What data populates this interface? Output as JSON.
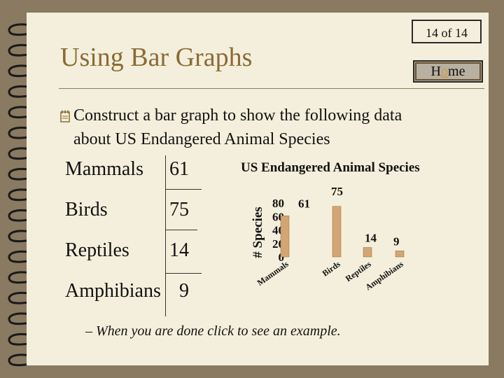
{
  "slide": {
    "number_label": "14 of 14",
    "title": "Using Bar Graphs",
    "home_button": "Home"
  },
  "bullet": {
    "line1": "Construct a bar graph to show the following data",
    "line2": "about US Endangered Animal Species"
  },
  "table": {
    "rows": [
      {
        "label": "Mammals",
        "value": "61"
      },
      {
        "label": "Birds",
        "value": "75"
      },
      {
        "label": "Reptiles",
        "value": "14"
      },
      {
        "label": "Amphibians",
        "value": "9"
      }
    ]
  },
  "chart_data": {
    "type": "bar",
    "title": "US Endangered Animal Species",
    "ylabel": "# Species",
    "categories": [
      "Mammals",
      "Birds",
      "Reptiles",
      "Amphibians"
    ],
    "values": [
      61,
      75,
      14,
      9
    ],
    "ylim": [
      0,
      80
    ],
    "yticks": [
      "80",
      "60",
      "40",
      "20",
      "0"
    ],
    "bar_color": "#d4a574",
    "grid": false
  },
  "footer": {
    "text": "– When you are done click to see an example."
  },
  "colors": {
    "background": "#8a7a62",
    "page": "#f4efdc",
    "title": "#8a6b35",
    "home_highlight": "#c8a050"
  }
}
